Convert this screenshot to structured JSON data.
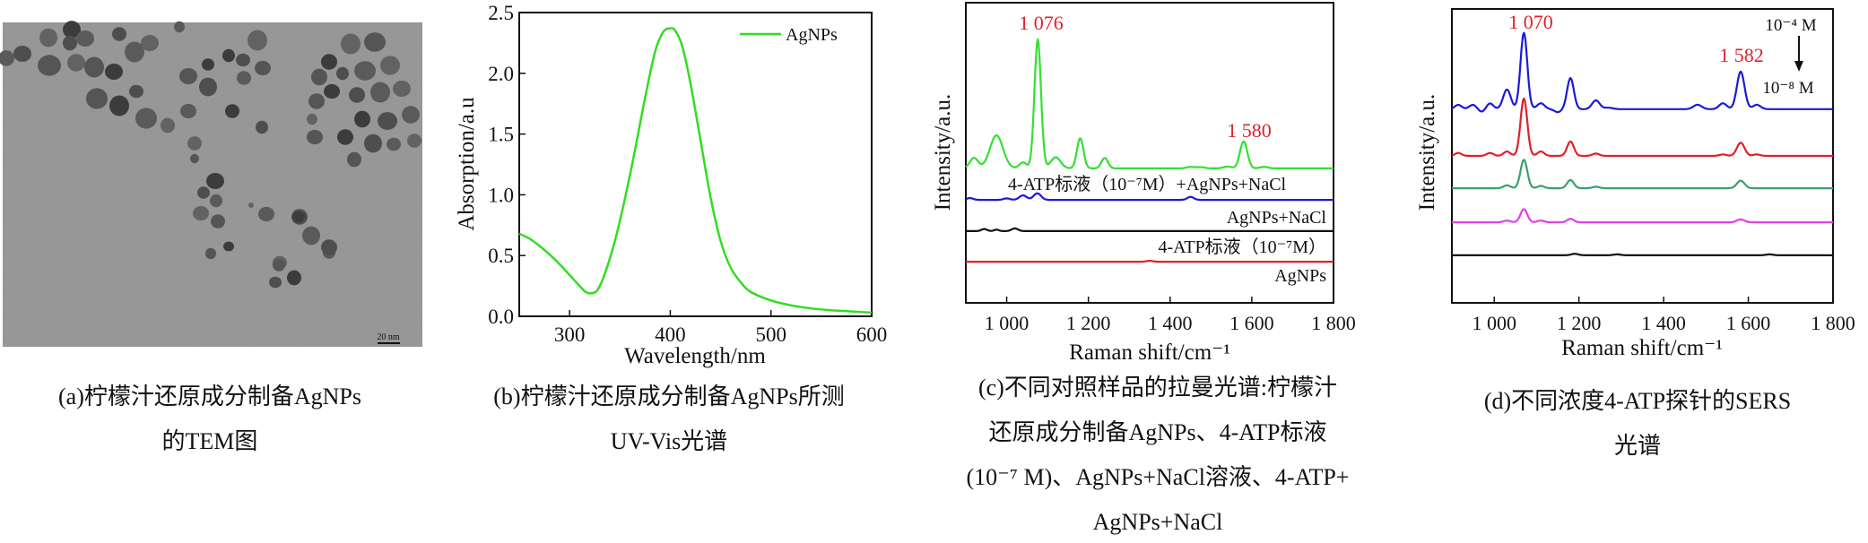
{
  "panel_a": {
    "scale_bar": "20 nm",
    "caption": [
      "(a)柠檬汁还原成分制备AgNPs",
      "的TEM图"
    ]
  },
  "panel_b": {
    "caption": [
      "(b)柠檬汁还原成分制备AgNPs所测",
      "UV-Vis光谱"
    ]
  },
  "panel_c": {
    "caption": [
      "(c)不同对照样品的拉曼光谱:柠檬汁",
      "还原成分制备AgNPs、4-ATP标液",
      "(10⁻⁷ M)、AgNPs+NaCl溶液、4-ATP+",
      "AgNPs+NaCl"
    ]
  },
  "panel_d": {
    "caption": [
      "(d)不同浓度4-ATP探针的SERS",
      "光谱"
    ]
  },
  "chart_data": [
    {
      "type": "line",
      "title": "",
      "xlabel": "Wavelength/nm",
      "ylabel": "Absorption/a.u",
      "xlim": [
        250,
        600
      ],
      "ylim": [
        0,
        2.5
      ],
      "xticks": [
        300,
        400,
        500,
        600
      ],
      "yticks": [
        "0.0",
        "0.5",
        "1.0",
        "1.5",
        "2.0",
        "2.5"
      ],
      "legend": "top-right",
      "series": [
        {
          "name": "AgNPs",
          "color": "#33dd22",
          "x": [
            250,
            260,
            270,
            280,
            290,
            300,
            310,
            316,
            322,
            328,
            335,
            345,
            355,
            365,
            375,
            385,
            393,
            400,
            405,
            412,
            420,
            430,
            440,
            450,
            460,
            470,
            480,
            500,
            520,
            540,
            560,
            580,
            600
          ],
          "y": [
            0.68,
            0.64,
            0.58,
            0.51,
            0.43,
            0.34,
            0.25,
            0.2,
            0.19,
            0.22,
            0.35,
            0.62,
            0.97,
            1.37,
            1.8,
            2.18,
            2.34,
            2.37,
            2.35,
            2.22,
            1.92,
            1.45,
            0.98,
            0.62,
            0.4,
            0.28,
            0.2,
            0.13,
            0.09,
            0.065,
            0.05,
            0.04,
            0.03
          ]
        }
      ]
    },
    {
      "type": "line",
      "title": "",
      "xlabel": "Raman shift/cm⁻¹",
      "ylabel": "Intensity/a.u.",
      "xlim": [
        900,
        1800
      ],
      "ylim": [
        0,
        10
      ],
      "xticks": [
        1000,
        1200,
        1400,
        1600,
        1800
      ],
      "xticklabels": [
        "1 000",
        "1 200",
        "1 400",
        "1 600",
        "1 800"
      ],
      "annotations": [
        {
          "text": "1 076",
          "x": 1076,
          "color": "#e0202a"
        },
        {
          "text": "1 580",
          "x": 1580,
          "color": "#e0202a"
        }
      ],
      "series": [
        {
          "label": "4-ATP标液（10⁻⁷M）+AgNPs+NaCl",
          "color": "#33e033",
          "baseline": 4.48,
          "peaks": [
            [
              920,
              0.35,
              10
            ],
            [
              975,
              1.1,
              16
            ],
            [
              1040,
              0.2,
              9
            ],
            [
              1076,
              4.3,
              8
            ],
            [
              1120,
              0.37,
              12
            ],
            [
              1180,
              1.0,
              8
            ],
            [
              1240,
              0.35,
              8
            ],
            [
              1450,
              0.05,
              10
            ],
            [
              1475,
              0.04,
              10
            ],
            [
              1540,
              0.06,
              10
            ],
            [
              1580,
              0.9,
              9
            ],
            [
              1630,
              0.05,
              10
            ]
          ]
        },
        {
          "label": "AgNPs+NaCl",
          "color": "#1a1ad8",
          "baseline": 3.43,
          "peaks": [
            [
              910,
              0.06,
              8
            ],
            [
              1000,
              0.05,
              8
            ],
            [
              1040,
              0.15,
              9
            ],
            [
              1075,
              0.22,
              9
            ],
            [
              1450,
              0.1,
              8
            ]
          ]
        },
        {
          "label": "4-ATP标液（10⁻⁷M）",
          "color": "#111111",
          "baseline": 2.39,
          "peaks": [
            [
              945,
              0.07,
              7
            ],
            [
              975,
              0.05,
              6
            ],
            [
              1020,
              0.09,
              8
            ]
          ]
        },
        {
          "label": "AgNPs",
          "color": "#e0202a",
          "baseline": 1.37,
          "peaks": [
            [
              1350,
              0.03,
              8
            ]
          ]
        }
      ]
    },
    {
      "type": "line",
      "title": "",
      "xlabel": "Raman shift/cm⁻¹",
      "ylabel": "Intensity/a.u.",
      "xlim": [
        900,
        1800
      ],
      "ylim": [
        0,
        10
      ],
      "xticks": [
        1000,
        1200,
        1400,
        1600,
        1800
      ],
      "xticklabels": [
        "1 000",
        "1 200",
        "1 400",
        "1 600",
        "1 800"
      ],
      "annotations": [
        {
          "text": "1 070",
          "x": 1070,
          "color": "#e0202a"
        },
        {
          "text": "1 582",
          "x": 1582,
          "color": "#e0202a"
        }
      ],
      "concentration_labels": {
        "high": "10⁻⁴ M",
        "low": "10⁻⁸ M"
      },
      "series": [
        {
          "color": "#1a1ad8",
          "baseline": 6.59,
          "peaks": [
            [
              915,
              0.15,
              8
            ],
            [
              950,
              0.15,
              9
            ],
            [
              970,
              -0.1,
              8
            ],
            [
              990,
              0.2,
              8
            ],
            [
              1030,
              0.67,
              9
            ],
            [
              1070,
              2.6,
              8
            ],
            [
              1110,
              0.2,
              9
            ],
            [
              1150,
              -0.1,
              8
            ],
            [
              1180,
              1.06,
              8
            ],
            [
              1240,
              0.3,
              9
            ],
            [
              1270,
              0.05,
              10
            ],
            [
              1480,
              0.15,
              10
            ],
            [
              1540,
              0.2,
              9
            ],
            [
              1582,
              1.28,
              9
            ],
            [
              1620,
              0.15,
              9
            ]
          ]
        },
        {
          "color": "#e0202a",
          "baseline": 5.0,
          "peaks": [
            [
              915,
              0.1,
              8
            ],
            [
              990,
              0.1,
              8
            ],
            [
              1030,
              0.15,
              8
            ],
            [
              1070,
              1.95,
              8
            ],
            [
              1110,
              0.15,
              8
            ],
            [
              1180,
              0.49,
              8
            ],
            [
              1240,
              0.08,
              8
            ],
            [
              1540,
              0.05,
              8
            ],
            [
              1582,
              0.45,
              9
            ],
            [
              1620,
              0.05,
              8
            ]
          ]
        },
        {
          "color": "#3aa070",
          "baseline": 3.9,
          "peaks": [
            [
              1030,
              0.1,
              8
            ],
            [
              1070,
              0.97,
              8
            ],
            [
              1110,
              0.08,
              8
            ],
            [
              1180,
              0.28,
              8
            ],
            [
              1240,
              0.05,
              8
            ],
            [
              1582,
              0.26,
              9
            ]
          ]
        },
        {
          "color": "#e040e8",
          "baseline": 2.74,
          "peaks": [
            [
              1030,
              0.06,
              8
            ],
            [
              1070,
              0.45,
              8
            ],
            [
              1110,
              0.06,
              8
            ],
            [
              1180,
              0.12,
              8
            ],
            [
              1582,
              0.1,
              9
            ]
          ]
        },
        {
          "color": "#111111",
          "baseline": 1.62,
          "peaks": [
            [
              1190,
              0.05,
              8
            ],
            [
              1290,
              0.03,
              8
            ],
            [
              1650,
              0.03,
              8
            ]
          ]
        }
      ]
    }
  ]
}
